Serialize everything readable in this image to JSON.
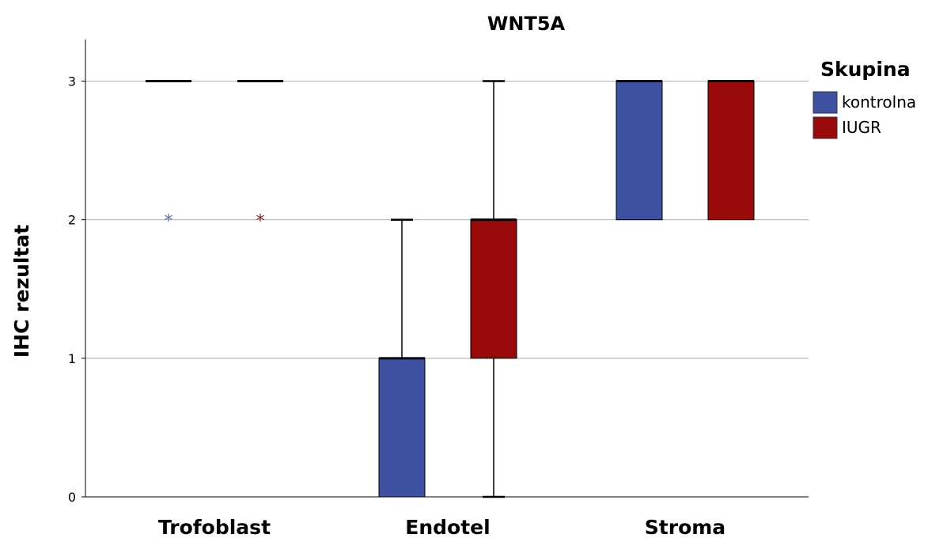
{
  "chart_data": {
    "type": "boxplot",
    "title": "WNT5A",
    "xlabel": "",
    "ylabel": "IHC rezultat",
    "ylim": [
      0,
      3.3
    ],
    "yticks": [
      0,
      1,
      2,
      3
    ],
    "grid": true,
    "categories": [
      "Trofoblast",
      "Endotel",
      "Stroma"
    ],
    "legend": {
      "title": "Skupina",
      "placement": "right"
    },
    "series": [
      {
        "name": "kontrolna",
        "color": "#3f51a3",
        "boxes": [
          {
            "category": "Trofoblast",
            "min": 3,
            "q1": 3,
            "median": 3,
            "q3": 3,
            "max": 3,
            "outliers": [
              2
            ]
          },
          {
            "category": "Endotel",
            "min": 0,
            "q1": 0,
            "median": 1,
            "q3": 1,
            "max": 2,
            "outliers": []
          },
          {
            "category": "Stroma",
            "min": 2,
            "q1": 2,
            "median": 3,
            "q3": 3,
            "max": 3,
            "outliers": []
          }
        ]
      },
      {
        "name": "IUGR",
        "color": "#9b0a0a",
        "boxes": [
          {
            "category": "Trofoblast",
            "min": 3,
            "q1": 3,
            "median": 3,
            "q3": 3,
            "max": 3,
            "outliers": [
              2
            ]
          },
          {
            "category": "Endotel",
            "min": 0,
            "q1": 1,
            "median": 2,
            "q3": 2,
            "max": 3,
            "outliers": []
          },
          {
            "category": "Stroma",
            "min": 2,
            "q1": 2,
            "median": 3,
            "q3": 3,
            "max": 3,
            "outliers": []
          }
        ]
      }
    ]
  }
}
